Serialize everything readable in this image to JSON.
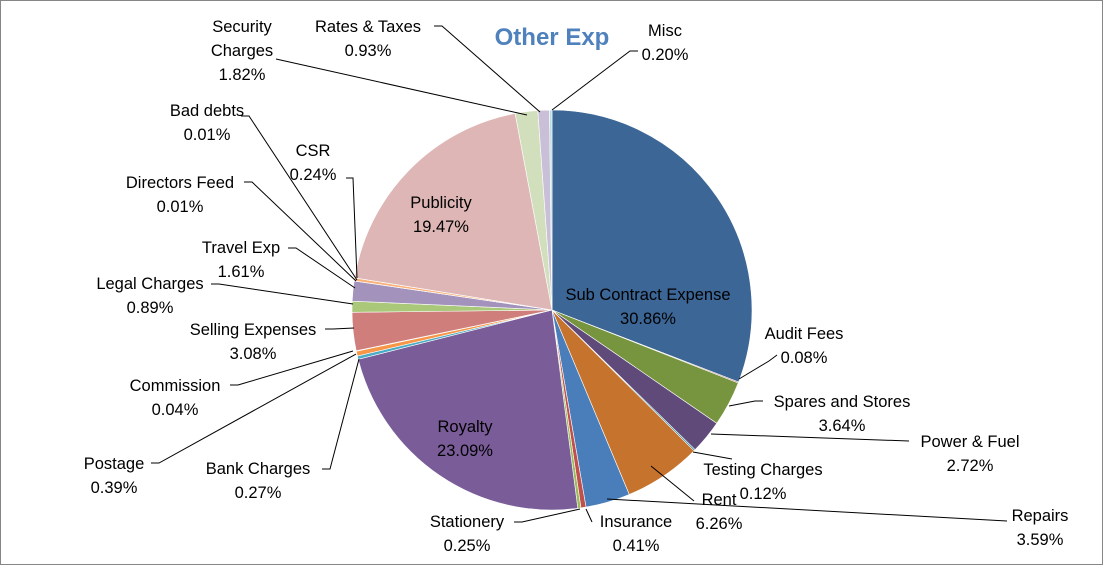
{
  "chart_data": {
    "type": "pie",
    "title": "Other Exp",
    "slices": [
      {
        "name": "Sub Contract Expense",
        "percent_label": "30.86%",
        "value": 30.86,
        "color": "#3C6696"
      },
      {
        "name": "Audit Fees",
        "percent_label": "0.08%",
        "value": 0.08,
        "color": "#8E3B3A"
      },
      {
        "name": "Spares and Stores",
        "percent_label": "3.64%",
        "value": 3.64,
        "color": "#77943E"
      },
      {
        "name": "Power & Fuel",
        "percent_label": "2.72%",
        "value": 2.72,
        "color": "#5F4A7A"
      },
      {
        "name": "Testing Charges",
        "percent_label": "0.12%",
        "value": 0.12,
        "color": "#31879F"
      },
      {
        "name": "Rent",
        "percent_label": "6.26%",
        "value": 6.26,
        "color": "#C6732D"
      },
      {
        "name": "Repairs",
        "percent_label": "3.59%",
        "value": 3.59,
        "color": "#4A7EBB"
      },
      {
        "name": "Insurance",
        "percent_label": "0.41%",
        "value": 0.41,
        "color": "#C0504D"
      },
      {
        "name": "Stationery",
        "percent_label": "0.25%",
        "value": 0.25,
        "color": "#9BBB59"
      },
      {
        "name": "Royalty",
        "percent_label": "23.09%",
        "value": 23.09,
        "color": "#7A5C99"
      },
      {
        "name": "Bank Charges",
        "percent_label": "0.27%",
        "value": 0.27,
        "color": "#4BACC6"
      },
      {
        "name": "Postage",
        "percent_label": "0.39%",
        "value": 0.39,
        "color": "#F79646"
      },
      {
        "name": "Commission",
        "percent_label": "0.04%",
        "value": 0.04,
        "color": "#2C4D75"
      },
      {
        "name": "Selling Expenses",
        "percent_label": "3.08%",
        "value": 3.08,
        "color": "#D07E7C"
      },
      {
        "name": "Legal Charges",
        "percent_label": "0.89%",
        "value": 0.89,
        "color": "#A9C879"
      },
      {
        "name": "Travel Exp",
        "percent_label": "1.61%",
        "value": 1.61,
        "color": "#A393BC"
      },
      {
        "name": "Directors Feed",
        "percent_label": "0.01%",
        "value": 0.01,
        "color": "#7DBFD1"
      },
      {
        "name": "CSR",
        "percent_label": "0.24%",
        "value": 0.24,
        "color": "#F9B27C"
      },
      {
        "name": "Bad debts",
        "percent_label": "0.01%",
        "value": 0.01,
        "color": "#8FA9CF"
      },
      {
        "name": "Publicity",
        "percent_label": "19.47%",
        "value": 19.47,
        "color": "#DDB6B5"
      },
      {
        "name": "Security Charges",
        "percent_label": "1.82%",
        "value": 1.82,
        "color": "#D2DFBD"
      },
      {
        "name": "Rates & Taxes",
        "percent_label": "0.93%",
        "value": 0.93,
        "color": "#C9C0D8"
      },
      {
        "name": "Misc",
        "percent_label": "0.20%",
        "value": 0.2,
        "color": "#B9DDE7"
      }
    ],
    "legend": "none",
    "data_labels": "name and percent, outside with leader lines"
  }
}
